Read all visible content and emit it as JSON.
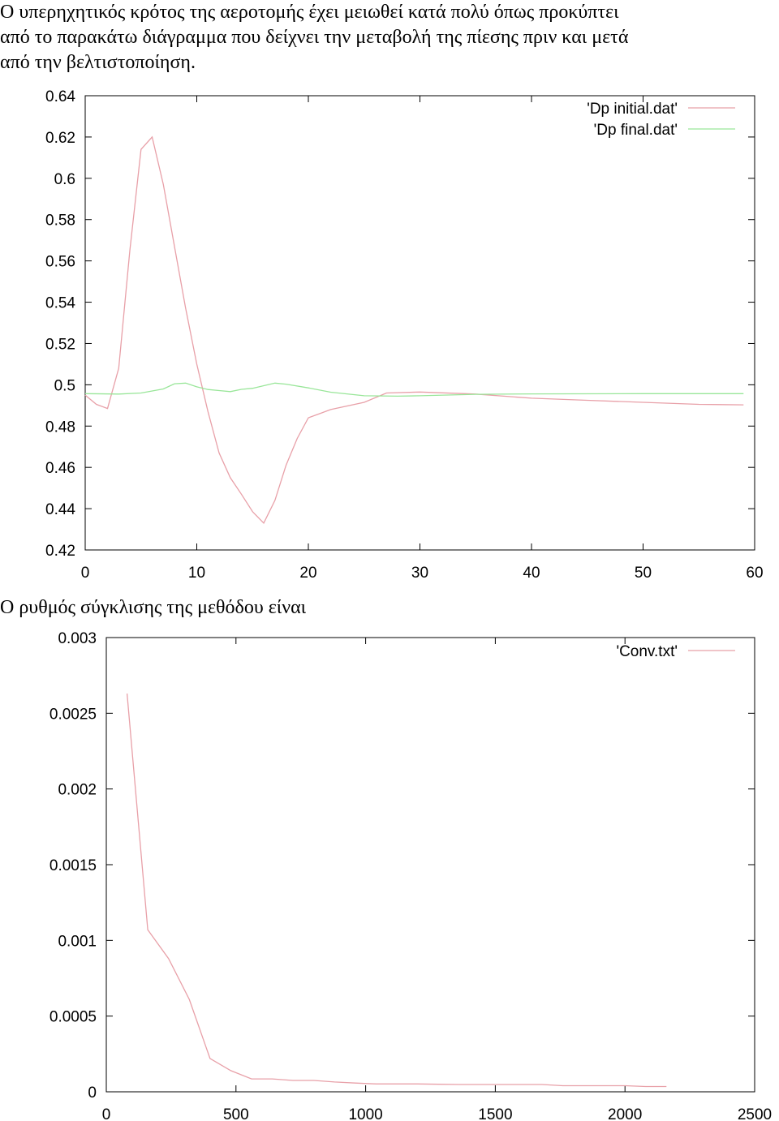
{
  "paragraphs": [
    "Ο υπερηχητικός κρότος της αεροτομής έχει μειωθεί κατά πολύ όπως προκύπτει",
    "από το παρακάτω διάγραμμα που δείχνει την μεταβολή της πίεσης πριν και μετά",
    "από την βελτιστοποίηση.",
    "Ο ρυθμός σύγκλισης της μεθόδου είναι"
  ],
  "chart_data": [
    {
      "type": "line",
      "title": "",
      "xlabel": "",
      "ylabel": "",
      "xlim": [
        0,
        60
      ],
      "ylim": [
        0.42,
        0.64
      ],
      "xticks": [
        0,
        10,
        20,
        30,
        40,
        50,
        60
      ],
      "xtick_labels": [
        "0",
        "10",
        "20",
        "30",
        "40",
        "50",
        "60"
      ],
      "yticks": [
        0.42,
        0.44,
        0.46,
        0.48,
        0.5,
        0.52,
        0.54,
        0.56,
        0.58,
        0.6,
        0.62,
        0.64
      ],
      "ytick_labels": [
        "0.42",
        "0.44",
        "0.46",
        "0.48",
        "0.5",
        "0.52",
        "0.54",
        "0.56",
        "0.58",
        "0.6",
        "0.62",
        "0.64"
      ],
      "grid": false,
      "legend_position": "top-right",
      "series": [
        {
          "name": "'Dp initial.dat'",
          "color": "#e8a0a8",
          "points": [
            [
              0,
              0.495
            ],
            [
              1,
              0.4905
            ],
            [
              2,
              0.4885
            ],
            [
              3,
              0.508
            ],
            [
              4,
              0.565
            ],
            [
              5,
              0.614
            ],
            [
              6,
              0.62
            ],
            [
              7,
              0.597
            ],
            [
              8,
              0.567
            ],
            [
              9,
              0.537
            ],
            [
              10,
              0.51
            ],
            [
              11,
              0.487
            ],
            [
              12,
              0.467
            ],
            [
              13,
              0.455
            ],
            [
              14,
              0.447
            ],
            [
              15,
              0.4385
            ],
            [
              16,
              0.433
            ],
            [
              17,
              0.444
            ],
            [
              18,
              0.461
            ],
            [
              19,
              0.474
            ],
            [
              20,
              0.484
            ],
            [
              21,
              0.486
            ],
            [
              22,
              0.488
            ],
            [
              25,
              0.4915
            ],
            [
              27,
              0.496
            ],
            [
              30,
              0.4965
            ],
            [
              35,
              0.4955
            ],
            [
              40,
              0.4935
            ],
            [
              45,
              0.4925
            ],
            [
              50,
              0.4915
            ],
            [
              55,
              0.4905
            ],
            [
              59,
              0.4903
            ]
          ]
        },
        {
          "name": "'Dp final.dat'",
          "color": "#99e699",
          "points": [
            [
              0,
              0.4957
            ],
            [
              3,
              0.4955
            ],
            [
              5,
              0.496
            ],
            [
              7,
              0.498
            ],
            [
              8,
              0.5005
            ],
            [
              9,
              0.5008
            ],
            [
              10,
              0.499
            ],
            [
              11,
              0.4977
            ],
            [
              12,
              0.4972
            ],
            [
              13,
              0.4967
            ],
            [
              14,
              0.4978
            ],
            [
              15,
              0.4983
            ],
            [
              17,
              0.5008
            ],
            [
              18,
              0.5003
            ],
            [
              20,
              0.4985
            ],
            [
              22,
              0.4964
            ],
            [
              25,
              0.4947
            ],
            [
              28,
              0.4945
            ],
            [
              30,
              0.4947
            ],
            [
              35,
              0.4954
            ],
            [
              40,
              0.4956
            ],
            [
              50,
              0.4957
            ],
            [
              59,
              0.4957
            ]
          ]
        }
      ]
    },
    {
      "type": "line",
      "title": "",
      "xlabel": "",
      "ylabel": "",
      "xlim": [
        0,
        2500
      ],
      "ylim": [
        0,
        0.003
      ],
      "xticks": [
        0,
        500,
        1000,
        1500,
        2000,
        2500
      ],
      "xtick_labels": [
        "0",
        "500",
        "1000",
        "1500",
        "2000",
        "2500"
      ],
      "yticks": [
        0,
        0.0005,
        0.001,
        0.0015,
        0.002,
        0.0025,
        0.003
      ],
      "ytick_labels": [
        "0",
        "0.0005",
        "0.001",
        "0.0015",
        "0.002",
        "0.0025",
        "0.003"
      ],
      "grid": false,
      "legend_position": "top-right",
      "series": [
        {
          "name": "'Conv.txt'",
          "color": "#e8a0a8",
          "points": [
            [
              80,
              0.00263
            ],
            [
              160,
              0.00107
            ],
            [
              240,
              0.00088
            ],
            [
              320,
              0.00061
            ],
            [
              400,
              0.00022
            ],
            [
              480,
              0.00014
            ],
            [
              560,
              8.5e-05
            ],
            [
              640,
              8.5e-05
            ],
            [
              720,
              7.5e-05
            ],
            [
              800,
              7.5e-05
            ],
            [
              880,
              6.5e-05
            ],
            [
              960,
              5.8e-05
            ],
            [
              1040,
              5.2e-05
            ],
            [
              1120,
              5.2e-05
            ],
            [
              1200,
              5.2e-05
            ],
            [
              1280,
              5e-05
            ],
            [
              1360,
              4.8e-05
            ],
            [
              1440,
              4.8e-05
            ],
            [
              1520,
              4.8e-05
            ],
            [
              1600,
              4.8e-05
            ],
            [
              1680,
              4.8e-05
            ],
            [
              1760,
              4e-05
            ],
            [
              1840,
              4e-05
            ],
            [
              1920,
              4e-05
            ],
            [
              2000,
              4e-05
            ],
            [
              2080,
              3.5e-05
            ],
            [
              2160,
              3.5e-05
            ]
          ]
        }
      ]
    }
  ]
}
